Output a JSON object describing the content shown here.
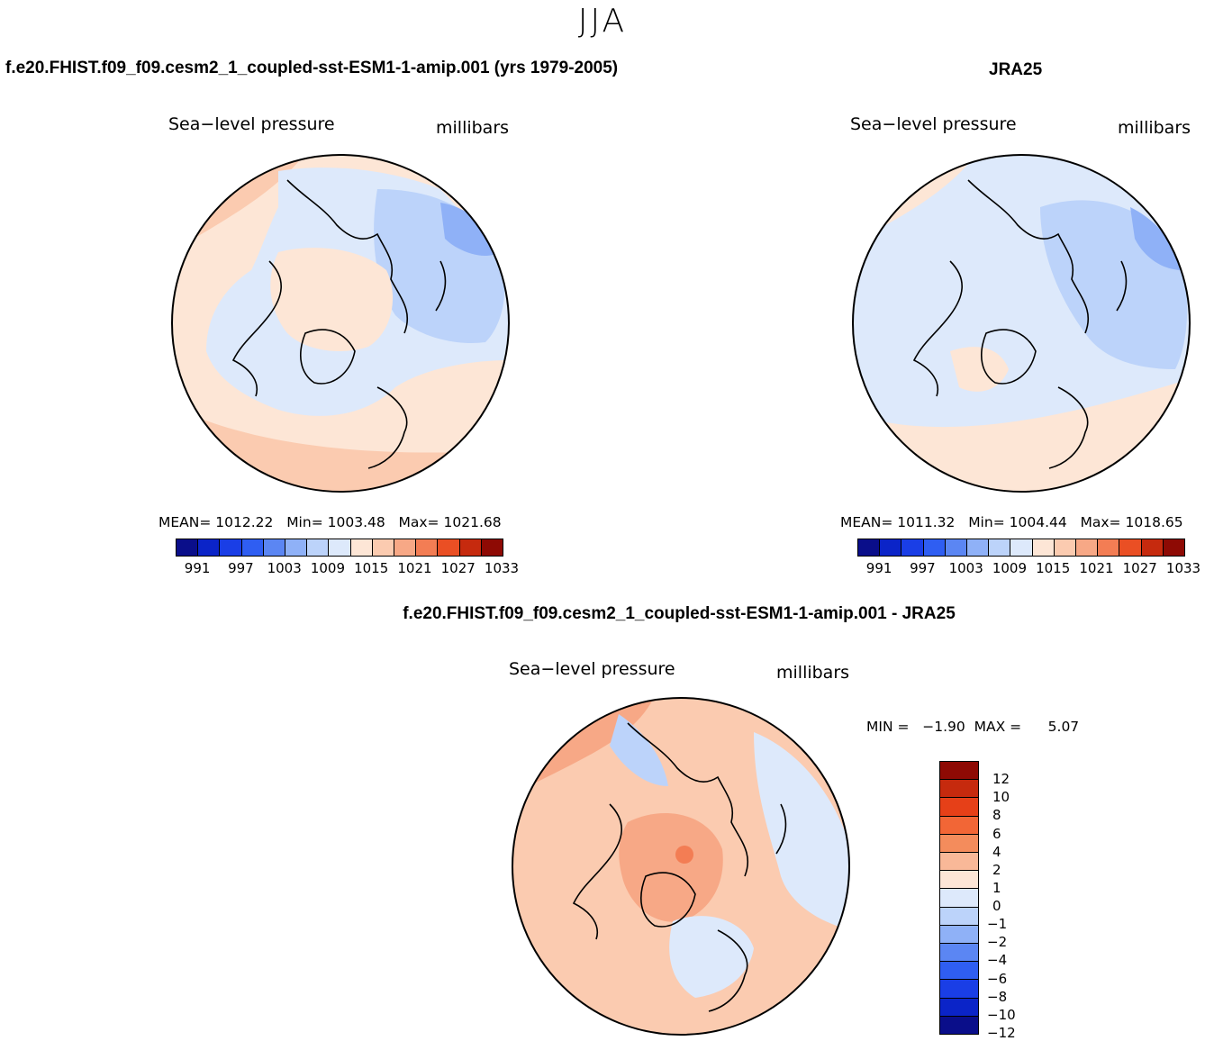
{
  "title": "JJA",
  "panel1": {
    "title": "f.e20.FHIST.f09_f09.cesm2_1_coupled-sst-ESM1-1-amip.001 (yrs 1979-2005)",
    "variable": "Sea−level pressure",
    "units": "millibars",
    "mean_label": "MEAN=",
    "mean_value": "1012.22",
    "min_label": "Min=",
    "min_value": "1003.48",
    "max_label": "Max=",
    "max_value": "1021.68"
  },
  "panel2": {
    "title": "JRA25",
    "variable": "Sea−level pressure",
    "units": "millibars",
    "mean_label": "MEAN=",
    "mean_value": "1011.32",
    "min_label": "Min=",
    "min_value": "1004.44",
    "max_label": "Max=",
    "max_value": "1018.65"
  },
  "panel3": {
    "title": "f.e20.FHIST.f09_f09.cesm2_1_coupled-sst-ESM1-1-amip.001 - JRA25",
    "variable": "Sea−level pressure",
    "units": "millibars",
    "minmax_text": "MIN =   −1.90  MAX =      5.07"
  },
  "colors": {
    "abs_palette": [
      "#0a0e8a",
      "#0b24c8",
      "#1a3ee6",
      "#2f5ef2",
      "#5b86f3",
      "#8fb1f7",
      "#bcd3fa",
      "#dde9fb",
      "#fde6d6",
      "#fbcbb0",
      "#f7a886",
      "#f37d54",
      "#ea4f24",
      "#c62a0e",
      "#8e0a04"
    ],
    "diff_palette": [
      "#8e0a04",
      "#c62a0e",
      "#e64018",
      "#f26636",
      "#f48c5c",
      "#f9b898",
      "#fde6d6",
      "#dde9fb",
      "#bcd3fa",
      "#8fb1f7",
      "#5b86f3",
      "#2f5ef2",
      "#1a3ee6",
      "#0b24c8",
      "#0a0e8a"
    ]
  },
  "chart_data": [
    {
      "type": "heatmap",
      "title": "f.e20.FHIST.f09_f09.cesm2_1_coupled-sst-ESM1-1-amip.001 (yrs 1979-2005)",
      "variable": "Sea-level pressure",
      "units": "millibars",
      "projection": "north polar stereographic",
      "mean": 1012.22,
      "min": 1003.48,
      "max": 1021.68,
      "colorbar_levels": [
        991,
        994,
        997,
        1000,
        1003,
        1006,
        1009,
        1012,
        1015,
        1018,
        1021,
        1024,
        1027,
        1030,
        1033
      ],
      "colorbar_tick_labels": [
        "991",
        "997",
        "1003",
        "1009",
        "1015",
        "1021",
        "1027",
        "1033"
      ]
    },
    {
      "type": "heatmap",
      "title": "JRA25",
      "variable": "Sea-level pressure",
      "units": "millibars",
      "projection": "north polar stereographic",
      "mean": 1011.32,
      "min": 1004.44,
      "max": 1018.65,
      "colorbar_levels": [
        991,
        994,
        997,
        1000,
        1003,
        1006,
        1009,
        1012,
        1015,
        1018,
        1021,
        1024,
        1027,
        1030,
        1033
      ],
      "colorbar_tick_labels": [
        "991",
        "997",
        "1003",
        "1009",
        "1015",
        "1021",
        "1027",
        "1033"
      ]
    },
    {
      "type": "heatmap",
      "title": "f.e20.FHIST.f09_f09.cesm2_1_coupled-sst-ESM1-1-amip.001 - JRA25",
      "variable": "Sea-level pressure",
      "units": "millibars",
      "projection": "north polar stereographic",
      "min": -1.9,
      "max": 5.07,
      "colorbar_levels": [
        -12,
        -10,
        -8,
        -6,
        -4,
        -2,
        -1,
        0,
        1,
        2,
        4,
        6,
        8,
        10,
        12
      ],
      "colorbar_tick_labels": [
        "12",
        "10",
        "8",
        "6",
        "4",
        "2",
        "1",
        "0",
        "−1",
        "−2",
        "−4",
        "−6",
        "−8",
        "−10",
        "−12"
      ]
    }
  ]
}
